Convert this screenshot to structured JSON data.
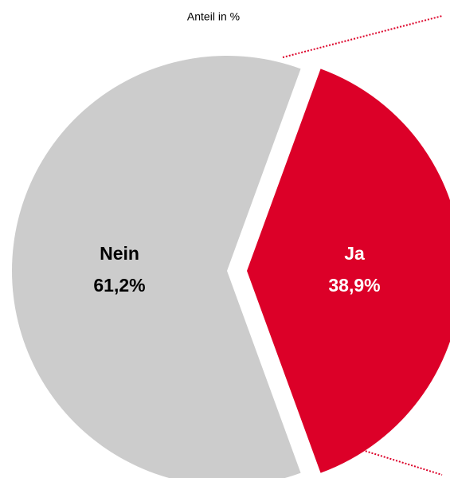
{
  "chart_data": {
    "type": "pie",
    "title": "Anteil in %",
    "categories": [
      "Nein",
      "Ja"
    ],
    "values": [
      61.2,
      38.9
    ],
    "value_labels": [
      "61,2%",
      "38,9%"
    ],
    "colors": [
      "#cccccc",
      "#dc0028"
    ],
    "label_colors": [
      "#000000",
      "#ffffff"
    ]
  }
}
